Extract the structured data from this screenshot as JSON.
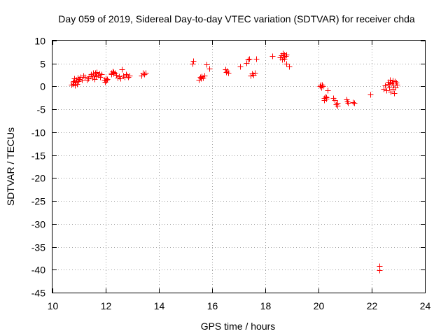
{
  "chart_data": {
    "type": "scatter",
    "title": "Day 059 of 2019, Sidereal Day-to-day VTEC variation (SDTVAR) for receiver chda",
    "xlabel": "GPS time / hours",
    "ylabel": "SDTVAR / TECUs",
    "xlim": [
      10,
      24
    ],
    "ylim": [
      -45,
      10
    ],
    "xticks": [
      10,
      12,
      14,
      16,
      18,
      20,
      22,
      24
    ],
    "yticks": [
      10,
      5,
      0,
      -5,
      -10,
      -15,
      -20,
      -25,
      -30,
      -35,
      -40,
      -45
    ],
    "grid": true,
    "marker": "+",
    "color": "#ff0000",
    "series": [
      {
        "name": "SDTVAR",
        "points": [
          [
            10.72,
            0.3
          ],
          [
            10.75,
            0.8
          ],
          [
            10.78,
            0.5
          ],
          [
            10.8,
            1.2
          ],
          [
            10.82,
            1.8
          ],
          [
            10.85,
            0.2
          ],
          [
            10.88,
            1.0
          ],
          [
            10.9,
            1.5
          ],
          [
            10.93,
            0.6
          ],
          [
            10.95,
            1.9
          ],
          [
            10.98,
            1.1
          ],
          [
            11.0,
            1.6
          ],
          [
            11.05,
            2.0
          ],
          [
            11.1,
            1.4
          ],
          [
            11.15,
            2.3
          ],
          [
            11.2,
            2.1
          ],
          [
            11.3,
            1.5
          ],
          [
            11.35,
            1.8
          ],
          [
            11.4,
            2.2
          ],
          [
            11.45,
            2.7
          ],
          [
            11.5,
            1.9
          ],
          [
            11.52,
            3.0
          ],
          [
            11.55,
            2.4
          ],
          [
            11.58,
            1.6
          ],
          [
            11.6,
            2.9
          ],
          [
            11.62,
            2.2
          ],
          [
            11.65,
            3.1
          ],
          [
            11.7,
            2.5
          ],
          [
            11.75,
            2.8
          ],
          [
            11.8,
            2.0
          ],
          [
            11.85,
            2.6
          ],
          [
            11.95,
            1.5
          ],
          [
            11.98,
            1.0
          ],
          [
            12.0,
            1.8
          ],
          [
            12.02,
            1.3
          ],
          [
            12.05,
            1.6
          ],
          [
            12.2,
            2.6
          ],
          [
            12.22,
            3.0
          ],
          [
            12.25,
            3.3
          ],
          [
            12.28,
            2.8
          ],
          [
            12.3,
            3.1
          ],
          [
            12.35,
            2.9
          ],
          [
            12.4,
            2.5
          ],
          [
            12.45,
            1.9
          ],
          [
            12.5,
            2.2
          ],
          [
            12.55,
            1.7
          ],
          [
            12.6,
            3.8
          ],
          [
            12.65,
            2.3
          ],
          [
            12.7,
            2.0
          ],
          [
            12.75,
            2.6
          ],
          [
            12.8,
            2.4
          ],
          [
            12.85,
            2.1
          ],
          [
            12.9,
            2.3
          ],
          [
            13.35,
            2.4
          ],
          [
            13.4,
            2.9
          ],
          [
            13.45,
            2.6
          ],
          [
            13.5,
            3.0
          ],
          [
            15.25,
            5.0
          ],
          [
            15.28,
            5.6
          ],
          [
            15.5,
            1.5
          ],
          [
            15.55,
            2.0
          ],
          [
            15.58,
            1.7
          ],
          [
            15.6,
            2.2
          ],
          [
            15.65,
            1.9
          ],
          [
            15.7,
            2.4
          ],
          [
            15.8,
            4.8
          ],
          [
            15.9,
            3.9
          ],
          [
            16.5,
            3.7
          ],
          [
            16.52,
            3.2
          ],
          [
            16.55,
            3.5
          ],
          [
            16.6,
            3.0
          ],
          [
            17.05,
            4.3
          ],
          [
            17.3,
            5.1
          ],
          [
            17.35,
            5.8
          ],
          [
            17.4,
            6.1
          ],
          [
            17.45,
            2.4
          ],
          [
            17.5,
            2.8
          ],
          [
            17.55,
            2.5
          ],
          [
            17.6,
            3.0
          ],
          [
            17.65,
            6.0
          ],
          [
            18.25,
            6.6
          ],
          [
            18.55,
            6.3
          ],
          [
            18.6,
            6.8
          ],
          [
            18.62,
            5.9
          ],
          [
            18.65,
            7.2
          ],
          [
            18.68,
            6.5
          ],
          [
            18.7,
            6.9
          ],
          [
            18.72,
            6.1
          ],
          [
            18.75,
            6.7
          ],
          [
            18.78,
            7.0
          ],
          [
            18.8,
            5.0
          ],
          [
            18.9,
            4.4
          ],
          [
            20.05,
            0.1
          ],
          [
            20.08,
            0.3
          ],
          [
            20.1,
            -0.2
          ],
          [
            20.12,
            0.4
          ],
          [
            20.15,
            0.0
          ],
          [
            20.2,
            -2.5
          ],
          [
            20.22,
            -3.0
          ],
          [
            20.25,
            -2.2
          ],
          [
            20.28,
            -2.7
          ],
          [
            20.3,
            -2.4
          ],
          [
            20.35,
            -0.8
          ],
          [
            20.55,
            -2.6
          ],
          [
            20.6,
            -3.0
          ],
          [
            20.65,
            -3.9
          ],
          [
            20.7,
            -4.2
          ],
          [
            20.72,
            -3.6
          ],
          [
            21.05,
            -2.9
          ],
          [
            21.08,
            -3.3
          ],
          [
            21.1,
            -3.6
          ],
          [
            21.3,
            -3.4
          ],
          [
            21.35,
            -3.6
          ],
          [
            21.95,
            -1.8
          ],
          [
            22.28,
            -39.2
          ],
          [
            22.3,
            -40.1
          ],
          [
            22.45,
            -0.6
          ],
          [
            22.5,
            0.2
          ],
          [
            22.55,
            -0.9
          ],
          [
            22.6,
            0.5
          ],
          [
            22.62,
            1.0
          ],
          [
            22.65,
            -0.3
          ],
          [
            22.68,
            1.4
          ],
          [
            22.7,
            0.7
          ],
          [
            22.72,
            -1.2
          ],
          [
            22.75,
            0.9
          ],
          [
            22.78,
            1.3
          ],
          [
            22.8,
            -0.5
          ],
          [
            22.82,
            0.4
          ],
          [
            22.85,
            -1.5
          ],
          [
            22.88,
            1.1
          ],
          [
            22.9,
            -0.2
          ],
          [
            22.92,
            0.8
          ],
          [
            22.95,
            0.3
          ]
        ]
      }
    ]
  }
}
